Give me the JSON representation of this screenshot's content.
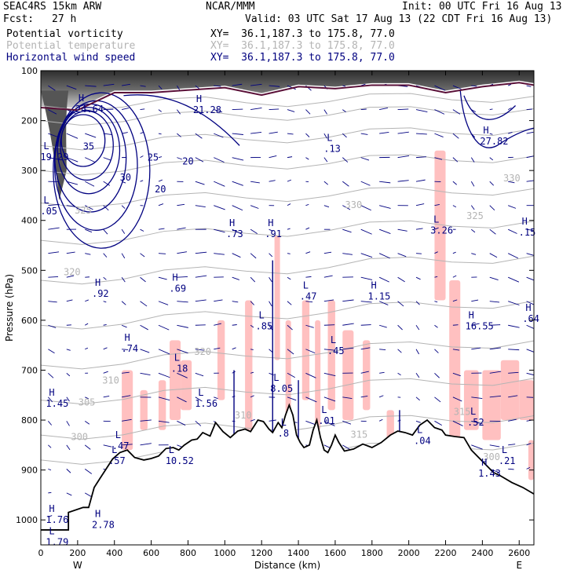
{
  "header": {
    "model": "SEAC4RS 15km ARW",
    "org": "NCAR/MMM",
    "init": "Init: 00 UTC Fri 16 Aug 13",
    "fcst_label": "Fcst:",
    "fcst_value": "27 h",
    "valid": "Valid: 03 UTC Sat 17 Aug 13 (22 CDT Fri 16 Aug 13)",
    "fields": [
      {
        "name": "Potential vorticity",
        "xy": "XY=  36.1,187.3 to 175.8, 77.0",
        "color": "#000000"
      },
      {
        "name": "Potential temperature",
        "xy": "XY=  36.1,187.3 to 175.8, 77.0",
        "color": "#b4b4b4"
      },
      {
        "name": "Horizontal wind speed",
        "xy": "XY=  36.1,187.3 to 175.8, 77.0",
        "color": "#000080"
      }
    ]
  },
  "chart_data": {
    "type": "cross-section",
    "xlabel": "Distance (km)",
    "ylabel": "Pressure (hPa)",
    "xlim": [
      0,
      2680
    ],
    "ylim": [
      1050,
      100
    ],
    "x_ticks": [
      0,
      200,
      400,
      600,
      800,
      1000,
      1200,
      1400,
      1600,
      1800,
      2000,
      2200,
      2400,
      2600
    ],
    "y_ticks": [
      100,
      200,
      300,
      400,
      500,
      600,
      700,
      800,
      900,
      1000
    ],
    "left_end_label": "W",
    "right_end_label": "E",
    "colors": {
      "wind": "#000080",
      "theta": "#b4b4b4",
      "pv_dark": "#3c3c3c",
      "pv_line": "#5a1038",
      "shade": "#ffc0c0",
      "terrain": "#000000"
    },
    "theta_labels": [
      {
        "text": "325",
        "x": 230,
        "p": 386
      },
      {
        "text": "320",
        "x": 170,
        "p": 510
      },
      {
        "text": "330",
        "x": 1700,
        "p": 375
      },
      {
        "text": "325",
        "x": 2360,
        "p": 397
      },
      {
        "text": "330",
        "x": 2560,
        "p": 322
      },
      {
        "text": "305",
        "x": 250,
        "p": 771
      },
      {
        "text": "300",
        "x": 210,
        "p": 840
      },
      {
        "text": "310",
        "x": 380,
        "p": 727
      },
      {
        "text": "315",
        "x": 2290,
        "p": 790
      },
      {
        "text": "320",
        "x": 880,
        "p": 669
      },
      {
        "text": "300",
        "x": 2450,
        "p": 880
      },
      {
        "text": "310",
        "x": 1100,
        "p": 797
      },
      {
        "text": "315",
        "x": 1730,
        "p": 835
      }
    ],
    "wind_contour_labels": [
      {
        "text": "35",
        "x": 260,
        "p": 258
      },
      {
        "text": "30",
        "x": 460,
        "p": 320
      },
      {
        "text": "25",
        "x": 610,
        "p": 280
      },
      {
        "text": "20",
        "x": 650,
        "p": 344
      },
      {
        "text": "20",
        "x": 800,
        "p": 288
      }
    ],
    "hl_labels": [
      {
        "letter": "H",
        "value": "24.64",
        "x": 230,
        "p": 180
      },
      {
        "letter": "H",
        "value": "21.28",
        "x": 870,
        "p": 182
      },
      {
        "letter": "L",
        "value": "19.29",
        "x": 40,
        "p": 276
      },
      {
        "letter": "L",
        "value": ".13",
        "x": 1580,
        "p": 260
      },
      {
        "letter": "H",
        "value": "27.82",
        "x": 2430,
        "p": 245
      },
      {
        "letter": "L",
        "value": ".05",
        "x": 40,
        "p": 385
      },
      {
        "letter": "H",
        "value": ".73",
        "x": 1050,
        "p": 430
      },
      {
        "letter": "H",
        "value": ".91",
        "x": 1260,
        "p": 430
      },
      {
        "letter": "L",
        "value": "3.26",
        "x": 2160,
        "p": 423
      },
      {
        "letter": "H",
        "value": ".15",
        "x": 2640,
        "p": 427
      },
      {
        "letter": "H",
        "value": ".92",
        "x": 320,
        "p": 550
      },
      {
        "letter": "H",
        "value": ".69",
        "x": 740,
        "p": 540
      },
      {
        "letter": "L",
        "value": ".47",
        "x": 1450,
        "p": 555
      },
      {
        "letter": "H",
        "value": "1.15",
        "x": 1820,
        "p": 555
      },
      {
        "letter": "H",
        "value": "16.55",
        "x": 2350,
        "p": 615
      },
      {
        "letter": "H",
        "value": ".64",
        "x": 2660,
        "p": 600
      },
      {
        "letter": "L",
        "value": ".85",
        "x": 1210,
        "p": 615
      },
      {
        "letter": "H",
        "value": ".74",
        "x": 480,
        "p": 660
      },
      {
        "letter": "L",
        "value": ".45",
        "x": 1600,
        "p": 665
      },
      {
        "letter": "L",
        "value": ".18",
        "x": 750,
        "p": 700
      },
      {
        "letter": "L",
        "value": "8.05",
        "x": 1290,
        "p": 740
      },
      {
        "letter": "H",
        "value": "1.45",
        "x": 70,
        "p": 770
      },
      {
        "letter": "L",
        "value": "1.56",
        "x": 880,
        "p": 770
      },
      {
        "letter": "L",
        "value": ".01",
        "x": 1550,
        "p": 805
      },
      {
        "letter": "L",
        "value": ".52",
        "x": 2360,
        "p": 808
      },
      {
        "letter": "L",
        "value": ".47",
        "x": 430,
        "p": 855
      },
      {
        "letter": "L",
        "value": ".57",
        "x": 410,
        "p": 885
      },
      {
        "letter": "L",
        "value": "10.52",
        "x": 720,
        "p": 885
      },
      {
        "letter": "L",
        "value": ".8",
        "x": 1330,
        "p": 830
      },
      {
        "letter": "L",
        "value": ".04",
        "x": 2070,
        "p": 845
      },
      {
        "letter": "L",
        "value": ".21",
        "x": 2530,
        "p": 885
      },
      {
        "letter": "H",
        "value": "1.43",
        "x": 2420,
        "p": 910
      },
      {
        "letter": "H",
        "value": "1.76",
        "x": 70,
        "p": 1003
      },
      {
        "letter": "H",
        "value": "2.78",
        "x": 320,
        "p": 1013
      },
      {
        "letter": "L",
        "value": "1.79",
        "x": 70,
        "p": 1048
      }
    ],
    "terrain_profile": [
      [
        0,
        1020
      ],
      [
        150,
        1020
      ],
      [
        150,
        985
      ],
      [
        230,
        975
      ],
      [
        260,
        975
      ],
      [
        290,
        935
      ],
      [
        330,
        912
      ],
      [
        360,
        895
      ],
      [
        390,
        878
      ],
      [
        430,
        865
      ],
      [
        470,
        860
      ],
      [
        510,
        875
      ],
      [
        560,
        880
      ],
      [
        600,
        877
      ],
      [
        640,
        872
      ],
      [
        680,
        857
      ],
      [
        720,
        855
      ],
      [
        750,
        860
      ],
      [
        780,
        850
      ],
      [
        820,
        840
      ],
      [
        850,
        838
      ],
      [
        880,
        825
      ],
      [
        920,
        832
      ],
      [
        950,
        805
      ],
      [
        990,
        823
      ],
      [
        1030,
        835
      ],
      [
        1070,
        822
      ],
      [
        1110,
        818
      ],
      [
        1140,
        823
      ],
      [
        1180,
        800
      ],
      [
        1210,
        803
      ],
      [
        1240,
        818
      ],
      [
        1260,
        825
      ],
      [
        1290,
        805
      ],
      [
        1310,
        815
      ],
      [
        1330,
        790
      ],
      [
        1350,
        770
      ],
      [
        1370,
        790
      ],
      [
        1390,
        830
      ],
      [
        1410,
        845
      ],
      [
        1430,
        855
      ],
      [
        1460,
        850
      ],
      [
        1480,
        820
      ],
      [
        1500,
        800
      ],
      [
        1520,
        835
      ],
      [
        1540,
        860
      ],
      [
        1560,
        865
      ],
      [
        1580,
        850
      ],
      [
        1600,
        830
      ],
      [
        1620,
        845
      ],
      [
        1650,
        862
      ],
      [
        1700,
        858
      ],
      [
        1750,
        848
      ],
      [
        1800,
        855
      ],
      [
        1850,
        845
      ],
      [
        1900,
        830
      ],
      [
        1940,
        822
      ],
      [
        1980,
        825
      ],
      [
        2020,
        830
      ],
      [
        2060,
        810
      ],
      [
        2100,
        800
      ],
      [
        2140,
        815
      ],
      [
        2180,
        820
      ],
      [
        2200,
        830
      ],
      [
        2250,
        833
      ],
      [
        2300,
        835
      ],
      [
        2340,
        860
      ],
      [
        2380,
        875
      ],
      [
        2420,
        890
      ],
      [
        2460,
        905
      ],
      [
        2500,
        912
      ],
      [
        2560,
        925
      ],
      [
        2620,
        935
      ],
      [
        2680,
        948
      ]
    ]
  }
}
